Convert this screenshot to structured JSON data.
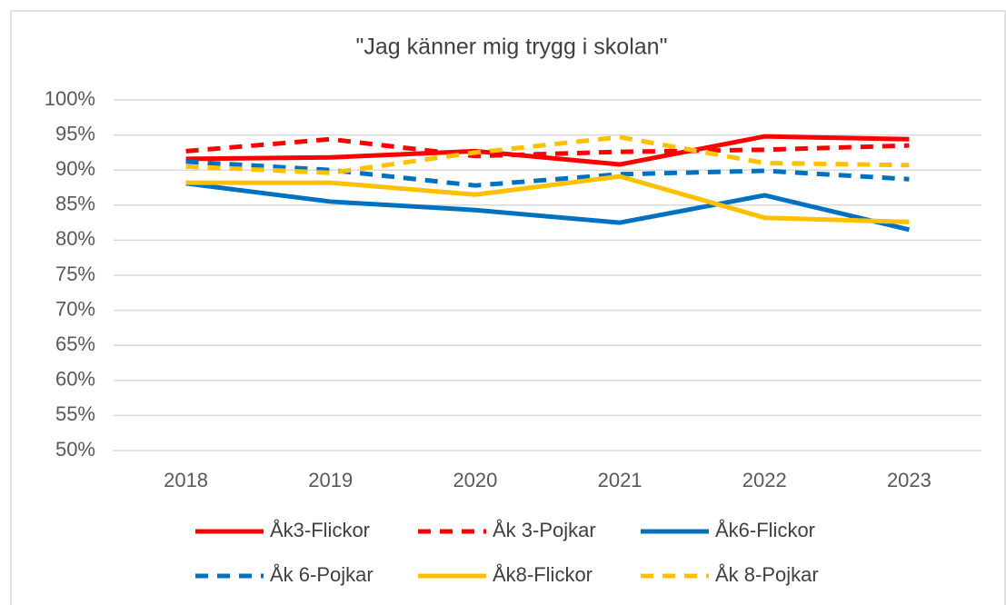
{
  "chart_data": {
    "type": "line",
    "title": "\"Jag känner mig trygg i skolan\"",
    "categories": [
      "2018",
      "2019",
      "2020",
      "2021",
      "2022",
      "2023"
    ],
    "series": [
      {
        "name": "Åk3-Flickor",
        "color": "#ff0000",
        "dashed": false,
        "values": [
          91.6,
          91.8,
          92.7,
          90.8,
          94.8,
          94.4
        ]
      },
      {
        "name": "Åk 3-Pojkar",
        "color": "#ff0000",
        "dashed": true,
        "values": [
          92.7,
          94.4,
          92.0,
          92.6,
          92.9,
          93.5
        ]
      },
      {
        "name": "Åk6-Flickor",
        "color": "#0070c0",
        "dashed": false,
        "values": [
          88.1,
          85.5,
          84.3,
          82.5,
          86.4,
          81.5
        ]
      },
      {
        "name": "Åk 6-Pojkar",
        "color": "#0070c0",
        "dashed": true,
        "values": [
          91.2,
          90.0,
          87.8,
          89.4,
          89.9,
          88.7
        ]
      },
      {
        "name": "Åk8-Flickor",
        "color": "#ffc000",
        "dashed": false,
        "values": [
          88.2,
          88.2,
          86.5,
          89.1,
          83.2,
          82.6
        ]
      },
      {
        "name": "Åk 8-Pojkar",
        "color": "#ffc000",
        "dashed": true,
        "values": [
          90.5,
          89.6,
          92.5,
          94.7,
          91.0,
          90.7
        ]
      }
    ],
    "ylim": [
      50,
      100
    ],
    "yticks": [
      {
        "value": 50,
        "label": "50%"
      },
      {
        "value": 55,
        "label": "55%"
      },
      {
        "value": 60,
        "label": "60%"
      },
      {
        "value": 65,
        "label": "65%"
      },
      {
        "value": 70,
        "label": "70%"
      },
      {
        "value": 75,
        "label": "75%"
      },
      {
        "value": 80,
        "label": "80%"
      },
      {
        "value": 85,
        "label": "85%"
      },
      {
        "value": 90,
        "label": "90%"
      },
      {
        "value": 95,
        "label": "95%"
      },
      {
        "value": 100,
        "label": "100%"
      }
    ],
    "grid": true,
    "legend": "bottom"
  }
}
